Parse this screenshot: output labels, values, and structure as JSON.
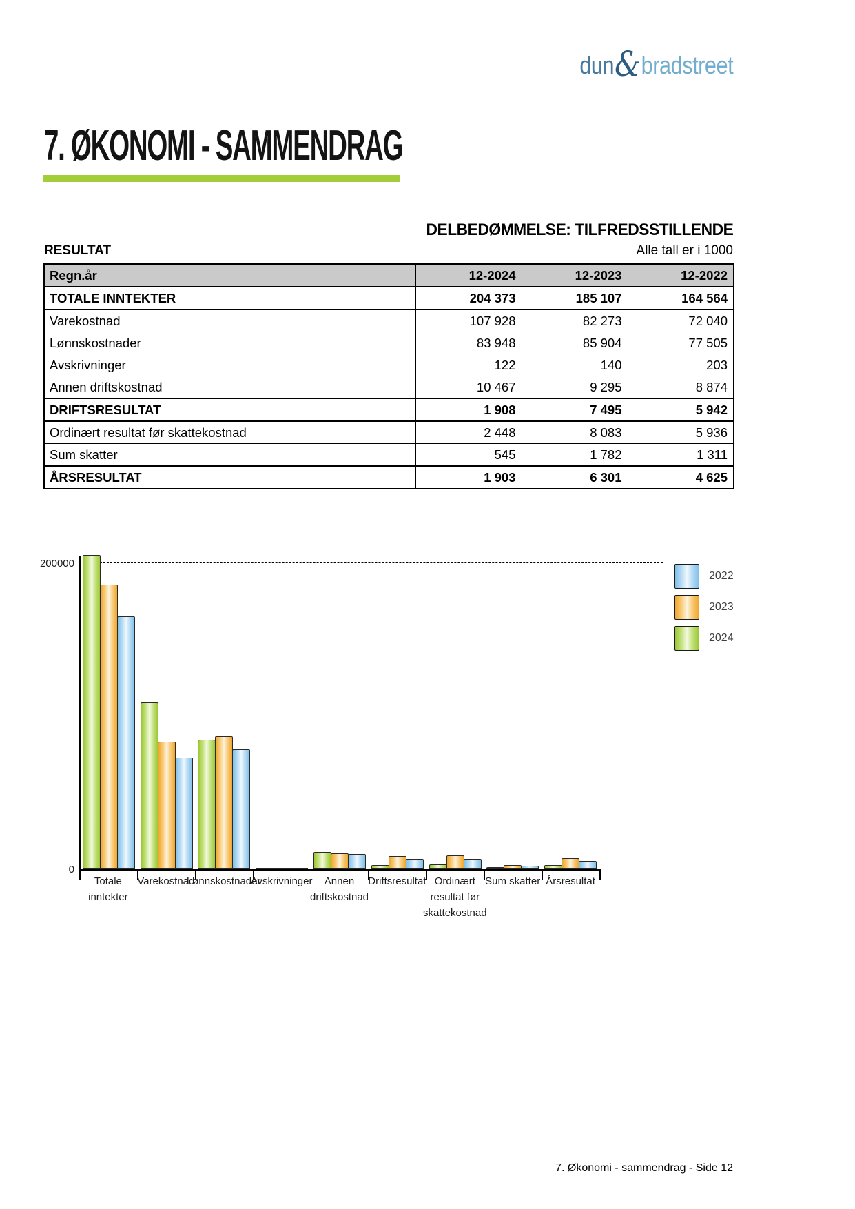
{
  "logo": {
    "part1": "dun",
    "amp": "&",
    "part2": "bradstreet"
  },
  "page_title": "7. ØKONOMI - SAMMENDRAG",
  "assessment": "DELBEDØMMELSE: TILFREDSSTILLENDE",
  "section_label": "RESULTAT",
  "units_note": "Alle tall er i 1000",
  "table": {
    "columns": [
      "Regn.år",
      "12-2024",
      "12-2023",
      "12-2022"
    ],
    "rows": [
      {
        "label": "TOTALE INNTEKTER",
        "values": [
          "204 373",
          "185 107",
          "164 564"
        ],
        "bold": true
      },
      {
        "label": "Varekostnad",
        "values": [
          "107 928",
          "82 273",
          "72 040"
        ],
        "bold": false
      },
      {
        "label": "Lønnskostnader",
        "values": [
          "83 948",
          "85 904",
          "77 505"
        ],
        "bold": false
      },
      {
        "label": "Avskrivninger",
        "values": [
          "122",
          "140",
          "203"
        ],
        "bold": false
      },
      {
        "label": "Annen driftskostnad",
        "values": [
          "10 467",
          "9 295",
          "8 874"
        ],
        "bold": false
      },
      {
        "label": "DRIFTSRESULTAT",
        "values": [
          "1 908",
          "7 495",
          "5 942"
        ],
        "bold": true
      },
      {
        "label": "Ordinært resultat før skattekostnad",
        "values": [
          "2 448",
          "8 083",
          "5 936"
        ],
        "bold": false
      },
      {
        "label": "Sum skatter",
        "values": [
          "545",
          "1 782",
          "1 311"
        ],
        "bold": false
      },
      {
        "label": "ÅRSRESULTAT",
        "values": [
          "1 903",
          "6 301",
          "4 625"
        ],
        "bold": true
      }
    ]
  },
  "chart_data": {
    "type": "bar",
    "title": "",
    "xlabel": "",
    "ylabel": "",
    "categories": [
      "Totale inntekter",
      "Varekostnad",
      "Lønnskostnader",
      "Avskrivninger",
      "Annen driftskostnad",
      "Driftsresultat",
      "Ordinært resultat før skattekostnad",
      "Sum skatter",
      "Årsresultat"
    ],
    "category_label_lines": [
      [
        "Totale",
        "inntekter"
      ],
      [
        "Varekostnad"
      ],
      [
        "Lønnskostnader"
      ],
      [
        "Avskrivninger"
      ],
      [
        "Annen",
        "driftskostnad"
      ],
      [
        "Driftsresultat"
      ],
      [
        "Ordinært",
        "resultat før",
        "skattekostnad"
      ],
      [
        "Sum skatter"
      ],
      [
        "Årsresultat"
      ]
    ],
    "series": [
      {
        "name": "2024",
        "color": "#9bc832",
        "mid": "#c6e383",
        "highlight": "#f3fadf",
        "values": [
          204373,
          107928,
          83948,
          122,
          10467,
          1908,
          2448,
          545,
          1903
        ]
      },
      {
        "name": "2023",
        "color": "#f1a62b",
        "mid": "#f8cd7e",
        "highlight": "#fdf3dd",
        "values": [
          185107,
          82273,
          85904,
          140,
          9295,
          7495,
          8083,
          1782,
          6301
        ]
      },
      {
        "name": "2022",
        "color": "#7fc0e9",
        "mid": "#b8dcf4",
        "highlight": "#eff8fe",
        "values": [
          164564,
          72040,
          77505,
          203,
          8874,
          5942,
          5936,
          1311,
          4625
        ]
      }
    ],
    "legend": [
      {
        "label": "2022"
      },
      {
        "label": "2023"
      },
      {
        "label": "2024"
      }
    ],
    "legend_position": "right-top",
    "ylim": [
      0,
      207000
    ],
    "yticks": [
      {
        "value": 200000,
        "label": "200000"
      },
      {
        "value": 0,
        "label": "0"
      }
    ],
    "gridline": {
      "value": 200000,
      "style": "dashed"
    },
    "grid": "single dashed line at 200000 only"
  },
  "footer": "7. Økonomi - sammendrag - Side 12",
  "colors": {
    "accent_green": "#a4ce39",
    "logo_dun": "#4a7a9d",
    "logo_amp": "#2d5e81",
    "logo_bradstreet": "#72adcd",
    "table_header_bg": "#cacaca",
    "bar_2024": "#9bc832",
    "bar_2023": "#f1a62b",
    "bar_2022": "#7fc0e9"
  }
}
